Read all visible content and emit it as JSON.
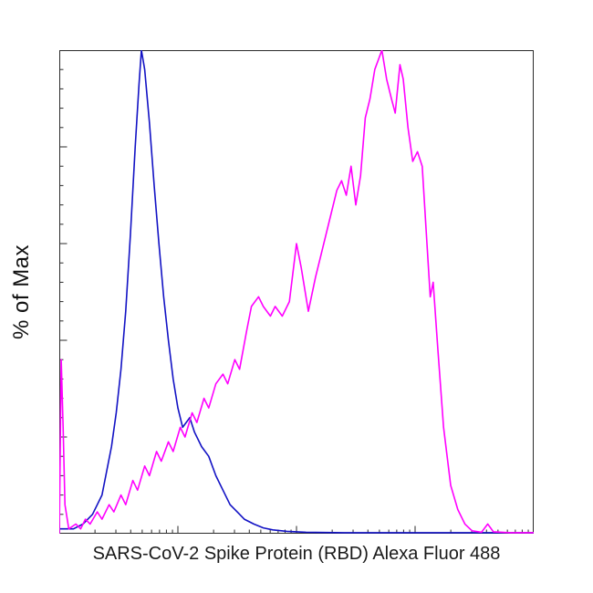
{
  "chart_data": {
    "type": "line",
    "subtype": "flow-cytometry-histogram-overlay",
    "title": "",
    "xlabel": "SARS-CoV-2 Spike Protein (RBD) Alexa Fluor 488",
    "ylabel": "% of Max",
    "x_range": [
      0,
      100
    ],
    "y_range": [
      0,
      100
    ],
    "x_scale_note": "unlabeled log-style fluorescence axis",
    "grid": false,
    "legend": "none",
    "frame_color": "#2a2a2a",
    "series": [
      {
        "name": "blue",
        "color": "#1212c4",
        "points": [
          [
            0,
            1
          ],
          [
            3,
            1
          ],
          [
            5,
            2
          ],
          [
            7,
            4
          ],
          [
            9,
            8
          ],
          [
            10,
            13
          ],
          [
            11,
            18
          ],
          [
            12,
            25
          ],
          [
            13,
            34
          ],
          [
            14,
            46
          ],
          [
            15,
            62
          ],
          [
            16,
            80
          ],
          [
            16.8,
            93
          ],
          [
            17.3,
            100
          ],
          [
            18,
            96
          ],
          [
            19,
            85
          ],
          [
            20,
            72
          ],
          [
            21,
            60
          ],
          [
            22,
            49
          ],
          [
            23,
            40
          ],
          [
            24,
            32
          ],
          [
            25,
            26
          ],
          [
            26,
            22
          ],
          [
            27.5,
            24
          ],
          [
            28.5,
            21
          ],
          [
            30,
            18
          ],
          [
            31.5,
            16
          ],
          [
            33,
            12
          ],
          [
            34.5,
            9
          ],
          [
            36,
            6
          ],
          [
            37.5,
            4.5
          ],
          [
            39,
            3
          ],
          [
            41,
            2
          ],
          [
            43,
            1.2
          ],
          [
            45,
            0.8
          ],
          [
            48,
            0.5
          ],
          [
            52,
            0.3
          ],
          [
            60,
            0.2
          ],
          [
            100,
            0.2
          ]
        ]
      },
      {
        "name": "magenta",
        "color": "#ff00ff",
        "points": [
          [
            0,
            0
          ],
          [
            0.4,
            36
          ],
          [
            0.8,
            22
          ],
          [
            1.2,
            6
          ],
          [
            2,
            1
          ],
          [
            3.5,
            2
          ],
          [
            4.5,
            1
          ],
          [
            5.5,
            3
          ],
          [
            6.5,
            2
          ],
          [
            8,
            4.5
          ],
          [
            9,
            3
          ],
          [
            10.5,
            6
          ],
          [
            11.5,
            4.5
          ],
          [
            13,
            8
          ],
          [
            14,
            6
          ],
          [
            15.5,
            11
          ],
          [
            16.5,
            9
          ],
          [
            18,
            14
          ],
          [
            19,
            12
          ],
          [
            20.5,
            17
          ],
          [
            21.5,
            15
          ],
          [
            23,
            19
          ],
          [
            24,
            17
          ],
          [
            25.5,
            22
          ],
          [
            26.5,
            20
          ],
          [
            28,
            25
          ],
          [
            29,
            23
          ],
          [
            30.5,
            28
          ],
          [
            31.5,
            26
          ],
          [
            33,
            31
          ],
          [
            34.5,
            33
          ],
          [
            35.5,
            31
          ],
          [
            37,
            36
          ],
          [
            38,
            34
          ],
          [
            39.5,
            42
          ],
          [
            40.5,
            47
          ],
          [
            42,
            49
          ],
          [
            43,
            47
          ],
          [
            44.5,
            45
          ],
          [
            45.5,
            47
          ],
          [
            47,
            45
          ],
          [
            48.5,
            48
          ],
          [
            50,
            60
          ],
          [
            51,
            55
          ],
          [
            52.5,
            46
          ],
          [
            54,
            53
          ],
          [
            55.5,
            59
          ],
          [
            57,
            65
          ],
          [
            58.5,
            71
          ],
          [
            59.5,
            73
          ],
          [
            60.5,
            70
          ],
          [
            61.5,
            76
          ],
          [
            62.5,
            68
          ],
          [
            63.5,
            74
          ],
          [
            64.5,
            86
          ],
          [
            65.5,
            90
          ],
          [
            66.5,
            96
          ],
          [
            68,
            100
          ],
          [
            69,
            94
          ],
          [
            70,
            90
          ],
          [
            70.8,
            87
          ],
          [
            71.8,
            97
          ],
          [
            72.5,
            94
          ],
          [
            73.5,
            84
          ],
          [
            74.5,
            77
          ],
          [
            75.5,
            79
          ],
          [
            76.5,
            76
          ],
          [
            77.5,
            60
          ],
          [
            78.2,
            49
          ],
          [
            78.8,
            52
          ],
          [
            79.8,
            38
          ],
          [
            81,
            22
          ],
          [
            82.5,
            10
          ],
          [
            84,
            5
          ],
          [
            85.5,
            2
          ],
          [
            87,
            0.6
          ],
          [
            89,
            0.3
          ],
          [
            90.3,
            2
          ],
          [
            91.5,
            0.4
          ],
          [
            95,
            0.2
          ],
          [
            100,
            0.2
          ]
        ]
      }
    ]
  }
}
